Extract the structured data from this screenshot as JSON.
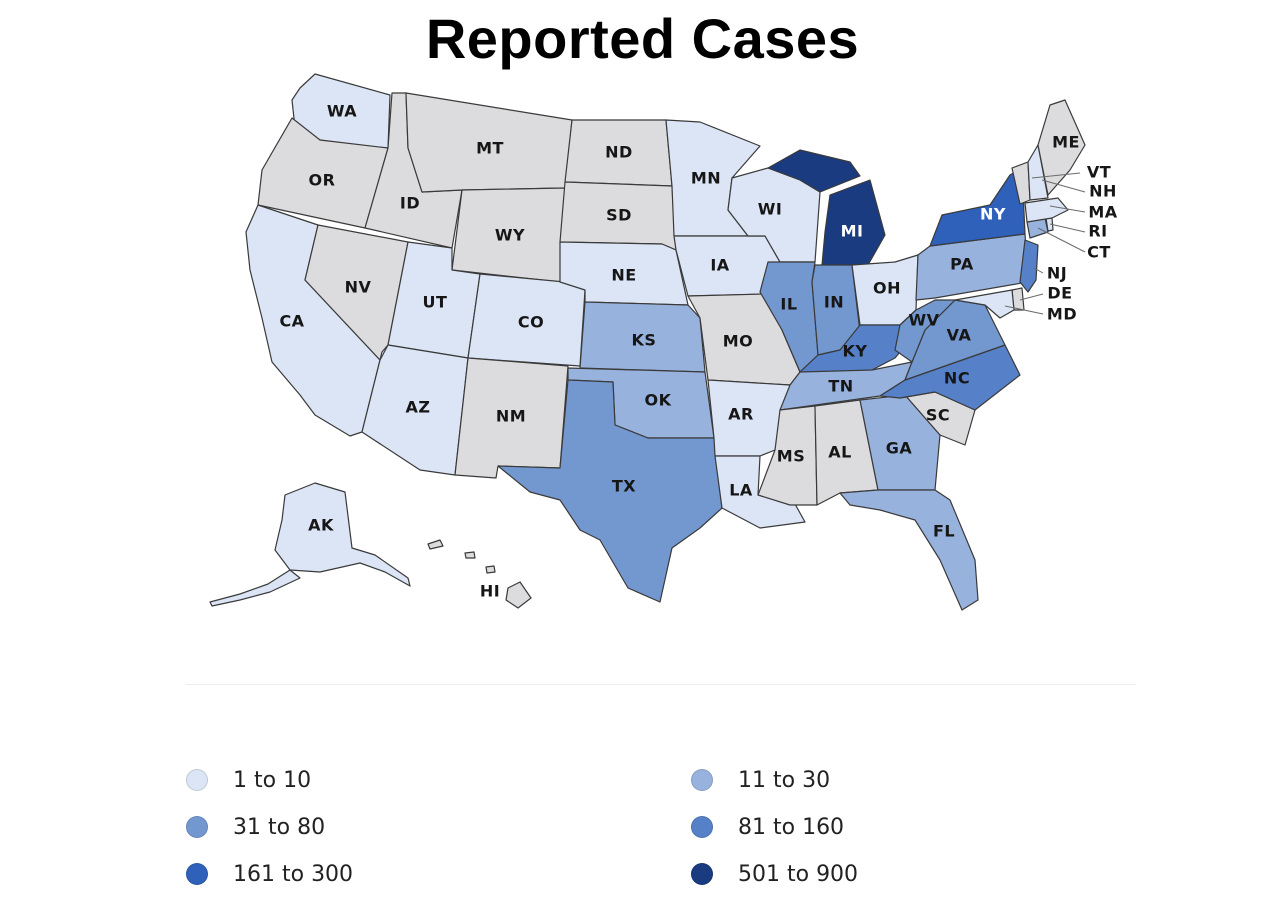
{
  "title": "Reported Cases",
  "colors": {
    "no_data": "#dcdcde",
    "bin_1_10": "#dbe5f5",
    "bin_11_30": "#97b2dd",
    "bin_31_80": "#7397cf",
    "bin_81_160": "#5681c8",
    "bin_161_300": "#2f61bb",
    "bin_501_900": "#1a3b80"
  },
  "legend": [
    {
      "label": "1 to 10",
      "color_key": "bin_1_10"
    },
    {
      "label": "11 to 30",
      "color_key": "bin_11_30"
    },
    {
      "label": "31 to 80",
      "color_key": "bin_31_80"
    },
    {
      "label": "81 to 160",
      "color_key": "bin_81_160"
    },
    {
      "label": "161 to 300",
      "color_key": "bin_161_300"
    },
    {
      "label": "501 to 900",
      "color_key": "bin_501_900"
    }
  ],
  "states": [
    {
      "abbr": "WA",
      "bin": "1 to 10"
    },
    {
      "abbr": "OR",
      "bin": "none"
    },
    {
      "abbr": "CA",
      "bin": "1 to 10"
    },
    {
      "abbr": "ID",
      "bin": "none"
    },
    {
      "abbr": "NV",
      "bin": "none"
    },
    {
      "abbr": "MT",
      "bin": "none"
    },
    {
      "abbr": "WY",
      "bin": "none"
    },
    {
      "abbr": "UT",
      "bin": "1 to 10"
    },
    {
      "abbr": "AZ",
      "bin": "1 to 10"
    },
    {
      "abbr": "CO",
      "bin": "1 to 10"
    },
    {
      "abbr": "NM",
      "bin": "none"
    },
    {
      "abbr": "ND",
      "bin": "none"
    },
    {
      "abbr": "SD",
      "bin": "none"
    },
    {
      "abbr": "NE",
      "bin": "1 to 10"
    },
    {
      "abbr": "KS",
      "bin": "11 to 30"
    },
    {
      "abbr": "OK",
      "bin": "11 to 30"
    },
    {
      "abbr": "TX",
      "bin": "31 to 80"
    },
    {
      "abbr": "MN",
      "bin": "1 to 10"
    },
    {
      "abbr": "IA",
      "bin": "1 to 10"
    },
    {
      "abbr": "MO",
      "bin": "none"
    },
    {
      "abbr": "AR",
      "bin": "1 to 10"
    },
    {
      "abbr": "LA",
      "bin": "1 to 10"
    },
    {
      "abbr": "WI",
      "bin": "1 to 10"
    },
    {
      "abbr": "IL",
      "bin": "31 to 80"
    },
    {
      "abbr": "MI",
      "bin": "501 to 900"
    },
    {
      "abbr": "IN",
      "bin": "31 to 80"
    },
    {
      "abbr": "OH",
      "bin": "1 to 10"
    },
    {
      "abbr": "KY",
      "bin": "81 to 160"
    },
    {
      "abbr": "TN",
      "bin": "11 to 30"
    },
    {
      "abbr": "MS",
      "bin": "none"
    },
    {
      "abbr": "AL",
      "bin": "none"
    },
    {
      "abbr": "GA",
      "bin": "11 to 30"
    },
    {
      "abbr": "FL",
      "bin": "11 to 30"
    },
    {
      "abbr": "SC",
      "bin": "none"
    },
    {
      "abbr": "NC",
      "bin": "81 to 160"
    },
    {
      "abbr": "VA",
      "bin": "31 to 80"
    },
    {
      "abbr": "WV",
      "bin": "31 to 80"
    },
    {
      "abbr": "PA",
      "bin": "11 to 30"
    },
    {
      "abbr": "NY",
      "bin": "161 to 300"
    },
    {
      "abbr": "NJ",
      "bin": "81 to 160"
    },
    {
      "abbr": "DE",
      "bin": "none"
    },
    {
      "abbr": "MD",
      "bin": "1 to 10"
    },
    {
      "abbr": "CT",
      "bin": "11 to 30"
    },
    {
      "abbr": "RI",
      "bin": "1 to 10"
    },
    {
      "abbr": "MA",
      "bin": "1 to 10"
    },
    {
      "abbr": "VT",
      "bin": "none"
    },
    {
      "abbr": "NH",
      "bin": "1 to 10"
    },
    {
      "abbr": "ME",
      "bin": "none"
    },
    {
      "abbr": "AK",
      "bin": "1 to 10"
    },
    {
      "abbr": "HI",
      "bin": "none"
    }
  ]
}
